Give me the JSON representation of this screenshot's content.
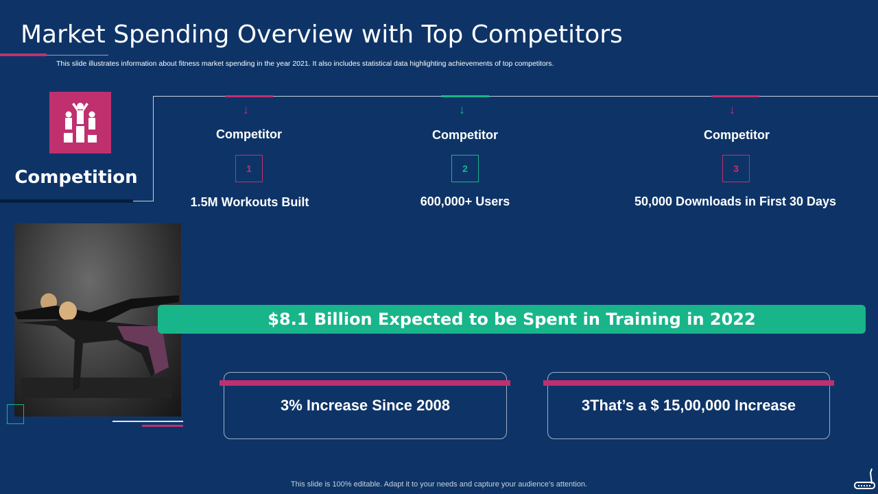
{
  "title": "Market Spending Overview with Top Competitors",
  "subtitle": "This slide illustrates information about fitness market spending in the year 2021. It also includes statistical data highlighting achievements of top competitors.",
  "section": {
    "label": "Competition",
    "icon": "podium-icon"
  },
  "competitors": [
    {
      "label": "Competitor",
      "number": "1",
      "stat": "1.5M Workouts Built",
      "color": "#c0306f"
    },
    {
      "label": "Competitor",
      "number": "2",
      "stat": "600,000+ Users",
      "color": "#19b58a"
    },
    {
      "label": "Competitor",
      "number": "3",
      "stat": "50,000 Downloads in First 30 Days",
      "color": "#c0306f"
    }
  ],
  "banner": "$8.1 Billion Expected to be Spent in Training in 2022",
  "boxes": [
    "3% Increase Since 2008",
    "3That’s a $ 15,00,000 Increase"
  ],
  "footer": "This slide is 100% editable. Adapt it to your needs and capture your audience’s attention.",
  "colors": {
    "background": "#0e3467",
    "accent_pink": "#c0306f",
    "accent_green": "#19b58a"
  }
}
